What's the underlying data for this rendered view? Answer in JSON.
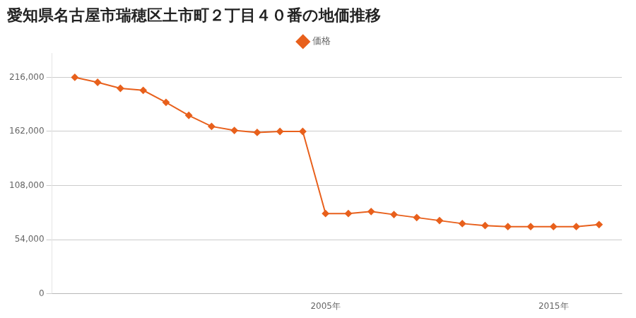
{
  "chart_data": {
    "type": "line",
    "title": "愛知県名古屋市瑞穂区土市町２丁目４０番の地価推移",
    "series": [
      {
        "name": "価格",
        "color": "#e8601c",
        "marker": "diamond",
        "line_style": "solid",
        "values": [
          216000,
          211000,
          205000,
          203000,
          191000,
          178000,
          167000,
          163000,
          161000,
          162000,
          162000,
          80000,
          80000,
          82000,
          79000,
          76000,
          73000,
          70000,
          68000,
          67000,
          67000,
          67000,
          67000,
          69000
        ]
      }
    ],
    "x": [
      1994,
      1995,
      1996,
      1997,
      1998,
      1999,
      2000,
      2001,
      2002,
      2003,
      2004,
      2005,
      2006,
      2007,
      2008,
      2009,
      2010,
      2011,
      2012,
      2013,
      2014,
      2015,
      2016,
      2017
    ],
    "xlim": [
      1993,
      2018
    ],
    "xticks": [
      {
        "value": 2005,
        "label": "2005年"
      },
      {
        "value": 2015,
        "label": "2015年"
      }
    ],
    "ylim": [
      0,
      240000
    ],
    "yticks": [
      0,
      {
        "value": 54000,
        "label": "54,000"
      },
      {
        "value": 108000,
        "label": "108,000"
      },
      {
        "value": 162000,
        "label": "162,000"
      },
      {
        "value": 216000,
        "label": "216,000"
      }
    ],
    "grid": "y",
    "legend": "top"
  }
}
